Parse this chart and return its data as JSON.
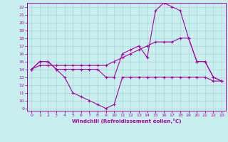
{
  "xlabel": "Windchill (Refroidissement éolien,°C)",
  "background_color": "#c8eeee",
  "grid_color": "#a8d8d8",
  "line_color": "#aa00aa",
  "xlim": [
    -0.5,
    23.5
  ],
  "ylim": [
    8.7,
    22.5
  ],
  "xticks": [
    0,
    1,
    2,
    3,
    4,
    5,
    6,
    7,
    8,
    9,
    10,
    11,
    12,
    13,
    14,
    15,
    16,
    17,
    18,
    19,
    20,
    21,
    22,
    23
  ],
  "yticks": [
    9,
    10,
    11,
    12,
    13,
    14,
    15,
    16,
    17,
    18,
    19,
    20,
    21,
    22
  ],
  "line1_x": [
    0,
    1,
    2,
    3,
    4,
    5,
    6,
    7,
    8,
    9,
    10,
    11,
    12,
    13,
    14,
    15,
    16,
    17,
    18,
    19,
    20,
    21,
    22,
    23
  ],
  "line1_y": [
    14.0,
    15.0,
    15.0,
    14.0,
    13.0,
    11.0,
    10.5,
    10.0,
    9.5,
    9.0,
    9.5,
    13.0,
    13.0,
    13.0,
    13.0,
    13.0,
    13.0,
    13.0,
    13.0,
    13.0,
    13.0,
    13.0,
    12.5,
    12.5
  ],
  "line2_x": [
    0,
    1,
    2,
    3,
    4,
    5,
    6,
    7,
    8,
    9,
    10,
    11,
    12,
    13,
    14,
    15,
    16,
    17,
    18,
    19,
    20,
    21,
    22,
    23
  ],
  "line2_y": [
    14.0,
    14.5,
    14.5,
    14.5,
    14.5,
    14.5,
    14.5,
    14.5,
    14.5,
    14.5,
    15.0,
    15.5,
    16.0,
    16.5,
    17.0,
    17.5,
    17.5,
    17.5,
    18.0,
    18.0,
    15.0,
    15.0,
    13.0,
    12.5
  ],
  "line3_x": [
    0,
    1,
    2,
    3,
    4,
    5,
    6,
    7,
    8,
    9,
    10,
    11,
    12,
    13,
    14,
    15,
    16,
    17,
    18,
    19,
    20,
    21,
    22,
    23
  ],
  "line3_y": [
    14.0,
    15.0,
    15.0,
    14.0,
    14.0,
    14.0,
    14.0,
    14.0,
    14.0,
    13.0,
    13.0,
    16.0,
    16.5,
    17.0,
    15.5,
    21.5,
    22.5,
    22.0,
    21.5,
    18.0,
    15.0,
    15.0,
    13.0,
    12.5
  ]
}
